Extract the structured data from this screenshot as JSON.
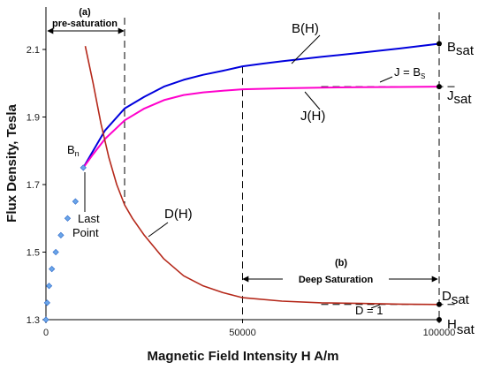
{
  "chart_data": {
    "type": "line",
    "xlabel": "Magnetic Field Intensity H A/m",
    "ylabel": "Flux Density, Tesla",
    "xlim": [
      0,
      100000
    ],
    "ylim": [
      1.3,
      2.2
    ],
    "xticks": [
      0,
      50000,
      100000
    ],
    "yticks": [
      1.3,
      1.5,
      1.7,
      1.9,
      2.1
    ],
    "grid": false,
    "series": [
      {
        "name": "B(H)",
        "color": "#0000dd",
        "x": [
          9500,
          12000,
          15000,
          20000,
          25000,
          30000,
          35000,
          40000,
          45000,
          50000,
          55000,
          60000,
          70000,
          80000,
          90000,
          100000
        ],
        "y": [
          1.75,
          1.8,
          1.86,
          1.925,
          1.96,
          1.99,
          2.01,
          2.025,
          2.037,
          2.05,
          2.058,
          2.065,
          2.078,
          2.09,
          2.103,
          2.117
        ]
      },
      {
        "name": "J(H)",
        "color": "#ff00cc",
        "x": [
          9500,
          12000,
          15000,
          20000,
          25000,
          30000,
          35000,
          40000,
          45000,
          50000,
          60000,
          70000,
          80000,
          90000,
          100000
        ],
        "y": [
          1.75,
          1.79,
          1.835,
          1.89,
          1.925,
          1.95,
          1.965,
          1.973,
          1.978,
          1.982,
          1.985,
          1.987,
          1.988,
          1.989,
          1.99
        ]
      },
      {
        "name": "D(H)",
        "color": "#b5281a",
        "x": [
          10000,
          12000,
          14000,
          16000,
          18000,
          20000,
          22000,
          25000,
          30000,
          35000,
          40000,
          45000,
          50000,
          60000,
          70000,
          80000,
          90000,
          100000
        ],
        "y": [
          2.11,
          2.0,
          1.88,
          1.78,
          1.7,
          1.64,
          1.6,
          1.55,
          1.48,
          1.43,
          1.4,
          1.38,
          1.365,
          1.355,
          1.35,
          1.348,
          1.346,
          1.345
        ]
      }
    ],
    "measured_points": {
      "label": "Bn",
      "x": [
        0,
        300,
        800,
        1500,
        2500,
        3800,
        5500,
        7500,
        9500
      ],
      "y": [
        1.3,
        1.35,
        1.4,
        1.45,
        1.5,
        1.55,
        1.6,
        1.65,
        1.75
      ],
      "color": "#6aa5e8"
    },
    "annotations": {
      "label_a": "(a)",
      "pre_saturation": "pre-saturation",
      "label_b": "(b)",
      "deep_saturation": "Deep Saturation",
      "last_point_line1": "Last",
      "last_point_line2": "Point",
      "j_eq_bs": "J = B",
      "j_eq_bs_sub": "S",
      "d_eq_1": "D = 1",
      "b_sat": "B",
      "b_sat_sub": "sat",
      "j_sat": "J",
      "j_sat_sub": "sat",
      "d_sat": "D",
      "d_sat_sub": "sat",
      "h_sat": "H",
      "h_sat_sub": "sat",
      "bn": "B",
      "bn_sub": "n"
    },
    "markers": {
      "pre_saturation_end": 20000,
      "deep_saturation_start": 50000,
      "saturation_h": 100000
    }
  }
}
